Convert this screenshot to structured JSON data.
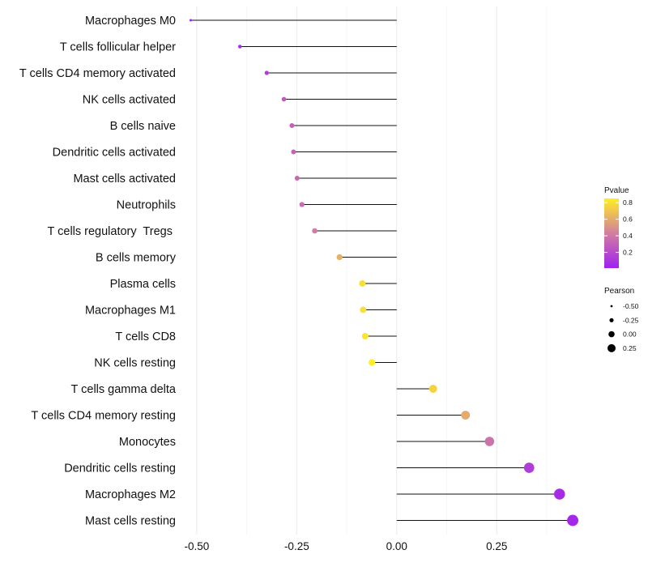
{
  "chart_data": {
    "type": "lollipop",
    "title": "",
    "xlabel": "",
    "ylabel": "",
    "xlim": [
      -0.52,
      0.45
    ],
    "xticks": [
      -0.5,
      -0.25,
      0.0,
      0.25
    ],
    "xtick_labels": [
      "-0.50",
      "-0.25",
      "0.00",
      "0.25"
    ],
    "grid": true,
    "categories": [
      "Macrophages M0",
      "T cells follicular helper",
      "T cells CD4 memory activated",
      "NK cells activated",
      "B cells naive",
      "Dendritic cells activated",
      "Mast cells activated",
      "Neutrophils",
      "T cells regulatory  Tregs ",
      "B cells memory",
      "Plasma cells",
      "Macrophages M1",
      "T cells CD8",
      "NK cells resting",
      "T cells gamma delta",
      "T cells CD4 memory resting",
      "Monocytes",
      "Dendritic cells resting",
      "Macrophages M2",
      "Mast cells resting"
    ],
    "pearson": [
      -0.515,
      -0.392,
      -0.325,
      -0.282,
      -0.262,
      -0.258,
      -0.249,
      -0.237,
      -0.205,
      -0.143,
      -0.086,
      -0.084,
      -0.079,
      -0.062,
      0.091,
      0.172,
      0.232,
      0.331,
      0.407,
      0.44
    ],
    "pvalue": [
      0.02,
      0.07,
      0.14,
      0.27,
      0.3,
      0.31,
      0.33,
      0.36,
      0.42,
      0.62,
      0.79,
      0.8,
      0.82,
      0.85,
      0.75,
      0.6,
      0.38,
      0.14,
      0.06,
      0.04
    ],
    "color_legend": {
      "title": "Pvalue",
      "ticks": [
        0.8,
        0.6,
        0.4,
        0.2
      ],
      "tick_labels": [
        "0.8",
        "0.6",
        "0.4",
        "0.2"
      ],
      "range": [
        0.01,
        0.85
      ],
      "low_color": "#a020f0",
      "mid_color": "#d27ea0",
      "high_color": "#ffee22"
    },
    "size_legend": {
      "title": "Pearson",
      "values": [
        -0.5,
        -0.25,
        0.0,
        0.25
      ],
      "labels": [
        "-0.50",
        "-0.25",
        "0.00",
        "0.25"
      ]
    },
    "stem_color": "#111111"
  }
}
